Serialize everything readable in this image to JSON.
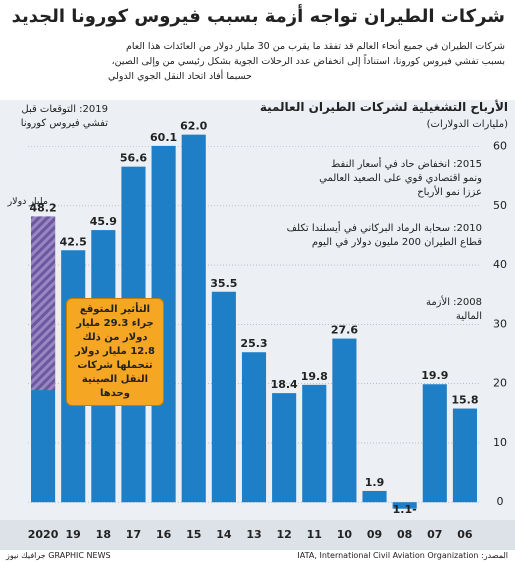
{
  "chart_data": {
    "type": "bar",
    "title": "شركات الطيران تواجه أزمة بسبب فيروس كورونا الجديد",
    "subtitle": [
      "شركات الطيران في جميع أنحاء العالم قد تفقد ما يقرب من 30 مليار دولار من العائدات هذا العام",
      "بسبب تفشي فيروس كورونا، استناداً إلى انخفاض عدد الرحلات الجوية بشكل رئيسي من وإلى الصين،",
      "حسبما أفاد اتحاد النقل الجوي الدولي"
    ],
    "chart_title": "الأرباح التشغيلية لشركات الطيران العالمية",
    "y_label": "(مليارات الدولارات)",
    "categories": [
      "2020",
      "19",
      "18",
      "17",
      "16",
      "15",
      "14",
      "13",
      "12",
      "11",
      "10",
      "09",
      "08",
      "07",
      "06"
    ],
    "values": [
      48.2,
      42.5,
      45.9,
      56.6,
      60.1,
      62,
      35.5,
      25.3,
      18.4,
      19.8,
      27.6,
      1.9,
      -1.1,
      19.9,
      15.8
    ],
    "value_labels": [
      "48.2",
      "42.5",
      "45.9",
      "56.6",
      "60.1",
      "62.0",
      "35.5",
      "25.3",
      "18.4",
      "19.8",
      "27.6",
      "1.9",
      "1.1-",
      "19.9",
      "15.8"
    ],
    "forecast_loss": 29.3,
    "color": "#1f7fc6",
    "ylim": [
      -3,
      67
    ],
    "yticks": [
      0,
      10,
      20,
      30,
      40,
      50,
      60
    ],
    "grid": true,
    "annotations": {
      "a2019": "2019: التوقعات قبل تفشي فيروس كورونا",
      "unit": "مليار دولار",
      "a2015": "2015: انخفاض حاد في أسعار النفط ونمو اقتصادي قوي على الصعيد العالمي عززا نمو الأرباح",
      "a2010": "2010: سحابة الرماد البركاني في أيسلندا تكلف قطاع الطيران 200 مليون دولار في اليوم",
      "a2008": "2008: الأزمة المالية",
      "impact": "التأثير المتوقع جراء 29.3 مليار دولار من ذلك 12.8 مليار دولار تتحملها شركات النقل الصينية وحدها"
    },
    "source": "المصدر: IATA, International Civil Aviation Organization",
    "brand": "GRAPHIC NEWS جرافيك نيوز"
  }
}
